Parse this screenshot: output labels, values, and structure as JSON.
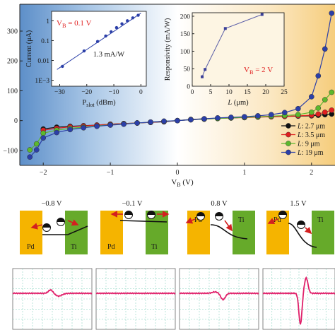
{
  "chart_data": [
    {
      "type": "line",
      "xlabel": "V_B (V)",
      "xlabel_main": "V",
      "xlabel_sub": "B",
      "xlabel_unit": " (V)",
      "ylabel": "",
      "xlim": [
        -2.35,
        2.35
      ],
      "ylim": [
        -150,
        390
      ],
      "xticks": [
        -2,
        -1,
        0,
        1,
        2
      ],
      "xtick_labels": [
        "−2",
        "−1",
        "0",
        "1",
        "2"
      ],
      "yticks": [
        -100,
        0,
        100,
        200,
        300
      ],
      "ytick_labels": [
        "−100",
        "0",
        "100",
        "200",
        "300"
      ],
      "legend_position": "right",
      "x": [
        -2.2,
        -2.1,
        -2.0,
        -1.8,
        -1.6,
        -1.4,
        -1.2,
        -1.0,
        -0.8,
        -0.6,
        -0.4,
        -0.2,
        0.0,
        0.2,
        0.4,
        0.6,
        0.8,
        1.0,
        1.2,
        1.4,
        1.6,
        1.8,
        2.0,
        2.1,
        2.2,
        2.3
      ],
      "series": [
        {
          "name": "L: 2.7 μm",
          "name_prefix": "L",
          "name_suffix": ": 2.7 μm",
          "color": "#111111",
          "values": [
            null,
            null,
            -28,
            -22,
            -19,
            -17,
            -15,
            -12,
            -10,
            -8,
            -6,
            -4,
            0,
            4,
            6,
            8,
            9,
            11,
            12,
            13,
            14,
            15,
            16,
            18,
            20,
            22
          ]
        },
        {
          "name": "L: 3.5 μm",
          "name_prefix": "L",
          "name_suffix": ": 3.5 μm",
          "color": "#e01f1f",
          "values": [
            null,
            null,
            -32,
            -26,
            -21,
            -18,
            -15,
            -12,
            -10,
            -8,
            -6,
            -3,
            0,
            3,
            5,
            7,
            9,
            10,
            12,
            13,
            14,
            16,
            18,
            22,
            28,
            35
          ]
        },
        {
          "name": "L: 9 μm",
          "name_prefix": "L",
          "name_suffix": ": 9 μm",
          "color": "#5cb82c",
          "values": [
            -98,
            -78,
            -42,
            -32,
            -26,
            -22,
            -18,
            -14,
            -11,
            -8,
            -5,
            -2,
            0,
            3,
            5,
            7,
            9,
            11,
            13,
            15,
            17,
            20,
            28,
            42,
            70,
            95
          ]
        },
        {
          "name": "L: 19 μm",
          "name_prefix": "L",
          "name_suffix": ": 19 μm",
          "color": "#2b3fa8",
          "values": [
            -122,
            -98,
            -58,
            -40,
            -30,
            -24,
            -19,
            -15,
            -12,
            -8,
            -5,
            -2,
            0,
            3,
            6,
            9,
            11,
            13,
            16,
            20,
            27,
            40,
            80,
            150,
            240,
            360
          ]
        }
      ]
    },
    {
      "type": "line",
      "inset": "left",
      "xlabel": "P_slot (dBm)",
      "xlabel_main": "P",
      "xlabel_sub": "slot",
      "xlabel_unit": " (dBm)",
      "ylabel": "Current (μA)",
      "xlim": [
        -33,
        2
      ],
      "ylim": [
        0.0005,
        3
      ],
      "log_y": true,
      "xticks": [
        -30,
        -20,
        -10,
        0
      ],
      "xtick_labels": [
        "−30",
        "−20",
        "−10",
        "0"
      ],
      "yticks": [
        0.001,
        0.01,
        0.1,
        1
      ],
      "ytick_labels": [
        "1E−3",
        "0.01",
        "0.1",
        "1"
      ],
      "annotation_bias_main": "V",
      "annotation_bias_sub": "B",
      "annotation_bias_value": " = 0.1 V",
      "annotation_slope": "1.3 mA/W",
      "x": [
        -29,
        -21,
        -16,
        -13,
        -11,
        -9,
        -7,
        -5,
        -3,
        -1
      ],
      "values": [
        0.005,
        0.03,
        0.09,
        0.17,
        0.28,
        0.45,
        0.7,
        1.0,
        1.4,
        1.9
      ]
    },
    {
      "type": "line",
      "inset": "right",
      "xlabel": "L (μm)",
      "xlabel_main": "L",
      "xlabel_unit": " (μm)",
      "ylabel": "Responsivity (mA/W)",
      "xlim": [
        0,
        25
      ],
      "ylim": [
        0,
        210
      ],
      "xticks": [
        0,
        5,
        10,
        15,
        20,
        25
      ],
      "xtick_labels": [
        "0",
        "5",
        "10",
        "15",
        "20",
        "25"
      ],
      "yticks": [
        0,
        50,
        100,
        150,
        200
      ],
      "ytick_labels": [
        "0",
        "50",
        "100",
        "150",
        "200"
      ],
      "annotation_bias_main": "V",
      "annotation_bias_sub": "B",
      "annotation_bias_value": " = 2 V",
      "x": [
        2.7,
        3.5,
        9,
        19
      ],
      "values": [
        27,
        48,
        165,
        205
      ]
    }
  ],
  "band_diagrams": [
    {
      "voltage": "−0.8 V",
      "left_metal": "Pd",
      "right_metal": "Ti"
    },
    {
      "voltage": "−0.1 V",
      "left_metal": "Pd",
      "right_metal": "Ti"
    },
    {
      "voltage": "0.8 V",
      "left_metal": "Pd",
      "right_metal": "Ti"
    },
    {
      "voltage": "1.5 V",
      "left_metal": "Pd",
      "right_metal": "Ti"
    }
  ],
  "colors": {
    "pd": "#f5b400",
    "ti": "#66aa2a",
    "arrow": "#d32020",
    "trace": "#e0206a",
    "grid": "#8fd6c4",
    "annotation_red": "#e01f1f"
  }
}
